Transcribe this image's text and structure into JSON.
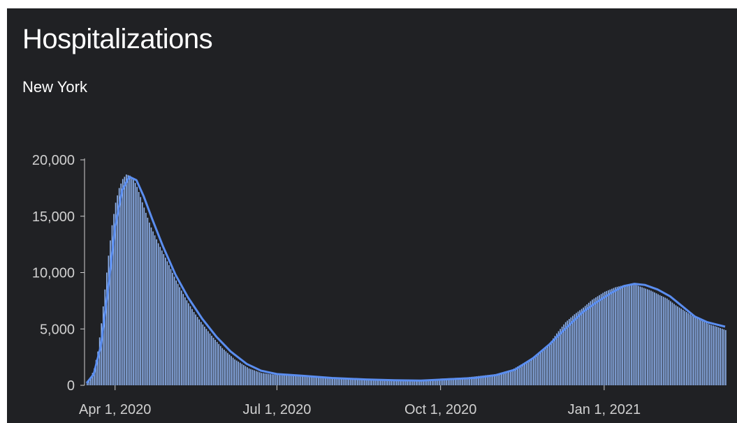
{
  "title": "Hospitalizations",
  "subtitle": "New York",
  "colors": {
    "background": "#202124",
    "bar": "#8fb3f0",
    "line": "#5b8ef0",
    "text": "#ffffff",
    "axis": "#d0d0d0"
  },
  "chart_data": {
    "type": "bar",
    "title": "Hospitalizations",
    "subtitle": "New York",
    "xlabel": "",
    "ylabel": "",
    "x_range": [
      "2020-03-16",
      "2021-03-10"
    ],
    "ylim": [
      0,
      20000
    ],
    "y_ticks": [
      0,
      5000,
      10000,
      15000,
      20000
    ],
    "y_tick_labels": [
      "0",
      "5,000",
      "10,000",
      "15,000",
      "20,000"
    ],
    "x_ticks": [
      "2020-04-01",
      "2020-07-01",
      "2020-10-01",
      "2021-01-01"
    ],
    "x_tick_labels": [
      "Apr 1, 2020",
      "Jul 1, 2020",
      "Oct 1, 2020",
      "Jan 1, 2021"
    ],
    "grid": false,
    "legend": "none",
    "series": [
      {
        "kind": "bars",
        "description": "daily",
        "points": [
          [
            "2020-03-16",
            300
          ],
          [
            "2020-03-18",
            700
          ],
          [
            "2020-03-20",
            1500
          ],
          [
            "2020-03-22",
            3000
          ],
          [
            "2020-03-24",
            5500
          ],
          [
            "2020-03-26",
            8500
          ],
          [
            "2020-03-28",
            11500
          ],
          [
            "2020-03-30",
            14200
          ],
          [
            "2020-04-01",
            16200
          ],
          [
            "2020-04-03",
            17500
          ],
          [
            "2020-04-05",
            18300
          ],
          [
            "2020-04-07",
            18700
          ],
          [
            "2020-04-09",
            18600
          ],
          [
            "2020-04-11",
            18300
          ],
          [
            "2020-04-13",
            17600
          ],
          [
            "2020-04-15",
            16700
          ],
          [
            "2020-04-18",
            15300
          ],
          [
            "2020-04-21",
            14000
          ],
          [
            "2020-04-25",
            12600
          ],
          [
            "2020-04-30",
            11000
          ],
          [
            "2020-05-05",
            9300
          ],
          [
            "2020-05-10",
            7800
          ],
          [
            "2020-05-15",
            6500
          ],
          [
            "2020-05-20",
            5400
          ],
          [
            "2020-05-25",
            4400
          ],
          [
            "2020-05-31",
            3300
          ],
          [
            "2020-06-07",
            2300
          ],
          [
            "2020-06-15",
            1500
          ],
          [
            "2020-06-22",
            1100
          ],
          [
            "2020-07-01",
            900
          ],
          [
            "2020-07-15",
            800
          ],
          [
            "2020-08-01",
            600
          ],
          [
            "2020-08-15",
            550
          ],
          [
            "2020-09-01",
            480
          ],
          [
            "2020-09-15",
            420
          ],
          [
            "2020-09-25",
            450
          ],
          [
            "2020-10-01",
            600
          ],
          [
            "2020-10-15",
            700
          ],
          [
            "2020-11-01",
            1000
          ],
          [
            "2020-11-10",
            1400
          ],
          [
            "2020-11-20",
            2300
          ],
          [
            "2020-11-30",
            3500
          ],
          [
            "2020-12-05",
            4600
          ],
          [
            "2020-12-10",
            5600
          ],
          [
            "2020-12-15",
            6300
          ],
          [
            "2020-12-20",
            6900
          ],
          [
            "2020-12-25",
            7600
          ],
          [
            "2021-01-01",
            8300
          ],
          [
            "2021-01-07",
            8700
          ],
          [
            "2021-01-12",
            8900
          ],
          [
            "2021-01-17",
            9000
          ],
          [
            "2021-01-22",
            8700
          ],
          [
            "2021-01-27",
            8400
          ],
          [
            "2021-02-01",
            8000
          ],
          [
            "2021-02-05",
            7700
          ],
          [
            "2021-02-10",
            7100
          ],
          [
            "2021-02-15",
            6600
          ],
          [
            "2021-02-20",
            6100
          ],
          [
            "2021-02-25",
            5700
          ],
          [
            "2021-03-01",
            5400
          ],
          [
            "2021-03-05",
            5200
          ],
          [
            "2021-03-10",
            4900
          ]
        ]
      },
      {
        "kind": "line",
        "description": "moving average",
        "points": [
          [
            "2020-03-16",
            200
          ],
          [
            "2020-03-20",
            1000
          ],
          [
            "2020-03-24",
            3500
          ],
          [
            "2020-03-28",
            8500
          ],
          [
            "2020-04-01",
            14000
          ],
          [
            "2020-04-05",
            17300
          ],
          [
            "2020-04-09",
            18500
          ],
          [
            "2020-04-13",
            18200
          ],
          [
            "2020-04-17",
            16800
          ],
          [
            "2020-04-22",
            14700
          ],
          [
            "2020-04-28",
            12300
          ],
          [
            "2020-05-05",
            9800
          ],
          [
            "2020-05-12",
            7800
          ],
          [
            "2020-05-20",
            5900
          ],
          [
            "2020-05-28",
            4300
          ],
          [
            "2020-06-05",
            3000
          ],
          [
            "2020-06-14",
            1900
          ],
          [
            "2020-06-22",
            1300
          ],
          [
            "2020-07-01",
            1000
          ],
          [
            "2020-07-15",
            850
          ],
          [
            "2020-08-01",
            650
          ],
          [
            "2020-08-20",
            520
          ],
          [
            "2020-09-05",
            450
          ],
          [
            "2020-09-20",
            420
          ],
          [
            "2020-10-01",
            500
          ],
          [
            "2020-10-20",
            650
          ],
          [
            "2020-11-01",
            900
          ],
          [
            "2020-11-12",
            1400
          ],
          [
            "2020-11-22",
            2400
          ],
          [
            "2020-12-01",
            3600
          ],
          [
            "2020-12-10",
            5000
          ],
          [
            "2020-12-20",
            6500
          ],
          [
            "2020-12-28",
            7400
          ],
          [
            "2021-01-05",
            8200
          ],
          [
            "2021-01-12",
            8800
          ],
          [
            "2021-01-18",
            9000
          ],
          [
            "2021-01-24",
            8900
          ],
          [
            "2021-01-31",
            8500
          ],
          [
            "2021-02-07",
            7900
          ],
          [
            "2021-02-14",
            7000
          ],
          [
            "2021-02-21",
            6100
          ],
          [
            "2021-02-28",
            5600
          ],
          [
            "2021-03-05",
            5400
          ],
          [
            "2021-03-10",
            5200
          ]
        ]
      }
    ]
  }
}
